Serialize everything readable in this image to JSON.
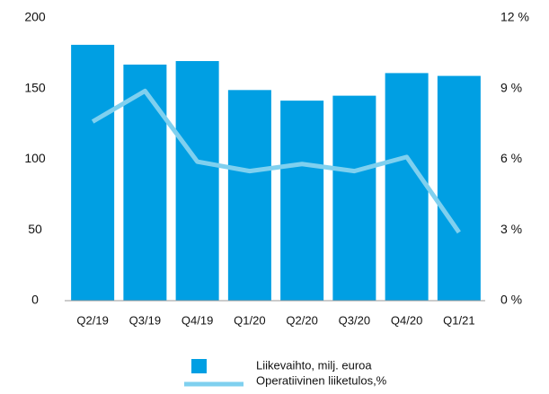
{
  "chart_data": {
    "type": "bar-line",
    "categories": [
      "Q2/19",
      "Q3/19",
      "Q4/19",
      "Q1/20",
      "Q2/20",
      "Q3/20",
      "Q4/20",
      "Q1/21"
    ],
    "series": [
      {
        "name": "Liikevaihto, milj. euroa",
        "type": "bar",
        "color": "#009fe3",
        "values": [
          181,
          167,
          169.5,
          149,
          141.5,
          145,
          161,
          159
        ]
      },
      {
        "name": "Operatiivinen liiketulos,%",
        "type": "line",
        "axis": "y2",
        "color": "#7fd0ef",
        "values": [
          7.6,
          8.9,
          5.9,
          5.5,
          5.8,
          5.5,
          6.1,
          2.9
        ]
      }
    ],
    "ylim": [
      0,
      200
    ],
    "yticks": [
      0,
      50,
      100,
      150,
      200
    ],
    "y2lim": [
      0,
      12
    ],
    "y2ticks": [
      {
        "value": 0,
        "label": "0 %"
      },
      {
        "value": 3,
        "label": "3 %"
      },
      {
        "value": 6,
        "label": "6 %"
      },
      {
        "value": 9,
        "label": "9 %"
      },
      {
        "value": 12,
        "label": "12 %"
      }
    ],
    "legend": "bottom"
  }
}
